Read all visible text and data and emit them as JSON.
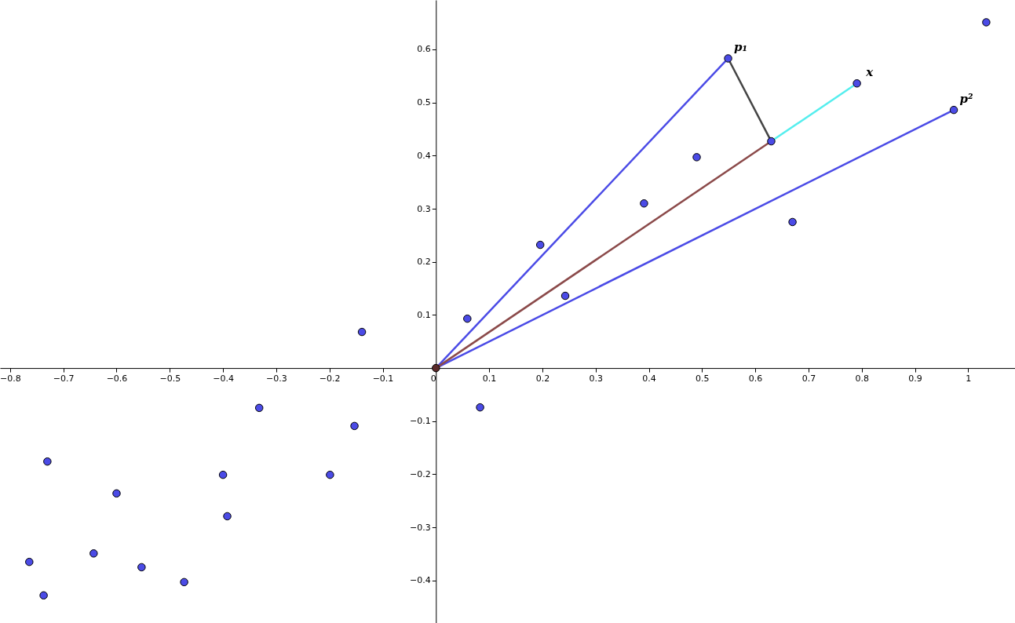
{
  "chart_data": {
    "type": "scatter",
    "xlim": [
      -0.819,
      1.088
    ],
    "ylim": [
      -0.48,
      0.693
    ],
    "xticks": [
      -0.8,
      -0.7,
      -0.6,
      -0.5,
      -0.4,
      -0.3,
      -0.2,
      -0.1,
      0,
      0.1,
      0.2,
      0.3,
      0.4,
      0.5,
      0.6,
      0.7,
      0.8,
      0.9,
      1
    ],
    "yticks": [
      -0.4,
      -0.3,
      -0.2,
      -0.1,
      0.1,
      0.2,
      0.3,
      0.4,
      0.5,
      0.6
    ],
    "grid": false,
    "marker": "circle",
    "line_style": "solid",
    "series": [
      {
        "type": "line",
        "marker": "none",
        "color": "#4b4be6",
        "x": [
          0,
          0.549
        ],
        "values": [
          0,
          0.583
        ]
      },
      {
        "type": "line",
        "marker": "none",
        "color": "#4b4be6",
        "x": [
          0,
          0.973
        ],
        "values": [
          0,
          0.486
        ]
      },
      {
        "type": "line",
        "marker": "none",
        "color": "#8b4a4a",
        "x": [
          0,
          0.63
        ],
        "values": [
          0,
          0.427
        ]
      },
      {
        "type": "line",
        "marker": "none",
        "color": "#444444",
        "x": [
          0.549,
          0.63
        ],
        "values": [
          0.583,
          0.427
        ]
      },
      {
        "type": "line",
        "marker": "none",
        "color": "#55eeee",
        "x": [
          0.63,
          0.791
        ],
        "values": [
          0.427,
          0.536
        ]
      },
      {
        "color": "#4b4be6",
        "x": [
          -0.139,
          0.059,
          0.196,
          0.243,
          0.391,
          0.49,
          0.63,
          0.67,
          1.034,
          0.083,
          -0.332,
          -0.153,
          -0.73,
          -0.4,
          -0.199,
          -0.6,
          -0.392,
          -0.764,
          -0.643,
          -0.553,
          -0.473,
          -0.737
        ],
        "values": [
          0.068,
          0.093,
          0.232,
          0.136,
          0.31,
          0.397,
          0.427,
          0.275,
          0.651,
          -0.074,
          -0.075,
          -0.109,
          -0.176,
          -0.201,
          -0.201,
          -0.236,
          -0.279,
          -0.365,
          -0.349,
          -0.375,
          -0.403,
          -0.428
        ]
      },
      {
        "name": "p₁",
        "color": "#4b4be6",
        "x": [
          0.549
        ],
        "values": [
          0.583
        ]
      },
      {
        "name": "x",
        "color": "#4b4be6",
        "x": [
          0.791
        ],
        "values": [
          0.536
        ]
      },
      {
        "name": "p²",
        "color": "#4b4be6",
        "x": [
          0.973
        ],
        "values": [
          0.486
        ]
      },
      {
        "color": "#5a2a2a",
        "x": [
          0
        ],
        "values": [
          0
        ]
      }
    ]
  }
}
